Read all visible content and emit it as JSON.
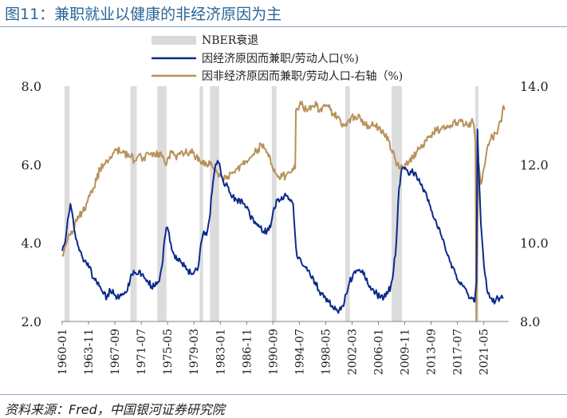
{
  "title": "图11：兼职就业以健康的非经济原因为主",
  "source": "资料来源：Fred，中国银河证券研究院",
  "chart_data": {
    "type": "line",
    "title": "图11：兼职就业以健康的非经济原因为主",
    "legend": [
      {
        "name": "NBER衰退",
        "kind": "band",
        "color": "#d9d9d9"
      },
      {
        "name": "因经济原因而兼职/劳动人口(%)",
        "kind": "line",
        "color": "#0b2b8c"
      },
      {
        "name": "因非经济原因而兼职/劳动人口-右轴（%)",
        "kind": "line",
        "color": "#b8915a"
      }
    ],
    "legend_position": "top-center",
    "x_range": [
      1960.0,
      2024.5
    ],
    "x_ticks": [
      "1960-01",
      "1963-11",
      "1967-09",
      "1971-07",
      "1975-05",
      "1979-03",
      "1983-01",
      "1986-11",
      "1990-09",
      "1994-07",
      "1998-05",
      "2002-03",
      "2006-01",
      "2009-11",
      "2013-09",
      "2017-07",
      "2021-05"
    ],
    "y_left": {
      "ticks": [
        "2.0",
        "4.0",
        "6.0",
        "8.0"
      ],
      "range": [
        2.0,
        8.0
      ]
    },
    "y_right": {
      "ticks": [
        "8.0",
        "10.0",
        "12.0",
        "14.0"
      ],
      "range": [
        8.0,
        14.0
      ]
    },
    "recessions": [
      [
        1960.33,
        1961.08
      ],
      [
        1969.92,
        1970.83
      ],
      [
        1973.83,
        1975.17
      ],
      [
        1980.0,
        1980.5
      ],
      [
        1981.5,
        1982.83
      ],
      [
        1990.5,
        1991.17
      ],
      [
        2001.17,
        2001.83
      ],
      [
        2007.92,
        2009.42
      ],
      [
        2020.08,
        2020.33
      ]
    ],
    "series": [
      {
        "name": "因经济原因而兼职/劳动人口(%)",
        "axis": "left",
        "color": "#0b2b8c",
        "x": [
          1960.0,
          1960.4,
          1960.8,
          1961.2,
          1961.6,
          1962.0,
          1962.5,
          1963.0,
          1963.5,
          1964.0,
          1964.5,
          1965.0,
          1965.5,
          1966.0,
          1966.5,
          1967.0,
          1967.5,
          1968.0,
          1968.5,
          1969.0,
          1969.5,
          1970.0,
          1970.4,
          1970.8,
          1971.2,
          1971.6,
          1972.0,
          1972.5,
          1973.0,
          1973.5,
          1974.0,
          1974.5,
          1975.0,
          1975.3,
          1975.8,
          1976.3,
          1976.8,
          1977.3,
          1977.8,
          1978.3,
          1978.8,
          1979.3,
          1979.8,
          1980.2,
          1980.6,
          1981.0,
          1981.4,
          1981.8,
          1982.2,
          1982.6,
          1983.0,
          1983.4,
          1983.8,
          1984.3,
          1984.8,
          1985.3,
          1985.8,
          1986.3,
          1986.8,
          1987.3,
          1987.8,
          1988.3,
          1988.8,
          1989.3,
          1989.8,
          1990.3,
          1990.8,
          1991.3,
          1991.8,
          1992.3,
          1992.8,
          1993.3,
          1993.6,
          1994.0,
          1994.3,
          1994.8,
          1995.3,
          1995.8,
          1996.3,
          1996.8,
          1997.3,
          1997.8,
          1998.3,
          1998.8,
          1999.3,
          1999.8,
          2000.3,
          2000.8,
          2001.3,
          2001.8,
          2002.3,
          2002.8,
          2003.3,
          2003.8,
          2004.3,
          2004.8,
          2005.3,
          2005.8,
          2006.3,
          2006.8,
          2007.3,
          2007.8,
          2008.2,
          2008.6,
          2009.0,
          2009.4,
          2009.8,
          2010.3,
          2010.8,
          2011.3,
          2011.8,
          2012.3,
          2012.8,
          2013.3,
          2013.8,
          2014.3,
          2014.8,
          2015.3,
          2015.8,
          2016.3,
          2016.8,
          2017.3,
          2017.8,
          2018.3,
          2018.8,
          2019.3,
          2019.8,
          2020.0,
          2020.25,
          2020.4,
          2020.6,
          2020.9,
          2021.2,
          2021.5,
          2021.8,
          2022.2,
          2022.6,
          2023.0,
          2023.4,
          2023.8,
          2024.2
        ],
        "values": [
          3.8,
          4.0,
          4.6,
          5.0,
          4.6,
          4.1,
          3.8,
          3.6,
          3.5,
          3.4,
          3.1,
          3.0,
          2.9,
          2.7,
          2.6,
          2.8,
          2.7,
          2.6,
          2.7,
          2.7,
          2.8,
          3.2,
          3.3,
          3.2,
          3.3,
          3.2,
          3.1,
          3.0,
          2.9,
          2.9,
          3.0,
          3.4,
          4.2,
          4.4,
          4.0,
          3.7,
          3.6,
          3.5,
          3.4,
          3.3,
          3.2,
          3.3,
          3.4,
          4.0,
          4.3,
          4.2,
          4.6,
          5.3,
          5.9,
          6.1,
          5.9,
          5.6,
          5.5,
          5.3,
          5.2,
          5.1,
          5.1,
          5.0,
          4.9,
          4.7,
          4.6,
          4.5,
          4.4,
          4.3,
          4.3,
          4.4,
          4.9,
          5.1,
          5.1,
          5.2,
          5.2,
          5.1,
          5.0,
          3.9,
          3.6,
          3.5,
          3.4,
          3.3,
          3.1,
          3.0,
          2.8,
          2.7,
          2.6,
          2.5,
          2.4,
          2.3,
          2.3,
          2.4,
          2.7,
          3.0,
          3.2,
          3.3,
          3.3,
          3.2,
          3.1,
          2.9,
          2.8,
          2.7,
          2.6,
          2.6,
          2.7,
          2.9,
          3.3,
          4.0,
          5.4,
          5.9,
          5.9,
          5.8,
          5.8,
          5.8,
          5.6,
          5.5,
          5.3,
          5.1,
          4.8,
          4.6,
          4.4,
          4.1,
          3.8,
          3.6,
          3.4,
          3.2,
          3.0,
          2.9,
          2.8,
          2.6,
          2.6,
          2.5,
          3.0,
          6.9,
          5.8,
          4.5,
          3.8,
          3.2,
          2.8,
          2.6,
          2.5,
          2.5,
          2.6,
          2.6,
          2.6
        ]
      },
      {
        "name": "因非经济原因而兼职/劳动人口-右轴（%)",
        "axis": "right",
        "color": "#b8915a",
        "x": [
          1960.0,
          1960.4,
          1960.8,
          1961.2,
          1961.6,
          1962.0,
          1962.5,
          1963.0,
          1963.5,
          1964.0,
          1964.5,
          1965.0,
          1965.5,
          1966.0,
          1966.5,
          1967.0,
          1967.5,
          1968.0,
          1968.5,
          1969.0,
          1969.5,
          1970.0,
          1970.5,
          1971.0,
          1971.5,
          1972.0,
          1972.5,
          1973.0,
          1973.5,
          1974.0,
          1974.5,
          1975.0,
          1975.5,
          1976.0,
          1976.5,
          1977.0,
          1977.5,
          1978.0,
          1978.5,
          1979.0,
          1979.5,
          1980.0,
          1980.5,
          1981.0,
          1981.5,
          1982.0,
          1982.5,
          1983.0,
          1983.5,
          1984.0,
          1984.5,
          1985.0,
          1985.5,
          1986.0,
          1986.5,
          1987.0,
          1987.5,
          1988.0,
          1988.5,
          1989.0,
          1989.5,
          1990.0,
          1990.5,
          1991.0,
          1991.5,
          1992.0,
          1992.5,
          1993.0,
          1993.5,
          1993.9,
          1994.0,
          1994.5,
          1995.0,
          1995.5,
          1996.0,
          1996.5,
          1997.0,
          1997.5,
          1998.0,
          1998.5,
          1999.0,
          1999.5,
          2000.0,
          2000.5,
          2001.0,
          2001.5,
          2002.0,
          2002.5,
          2003.0,
          2003.5,
          2004.0,
          2004.5,
          2005.0,
          2005.5,
          2006.0,
          2006.5,
          2007.0,
          2007.5,
          2008.0,
          2008.5,
          2009.0,
          2009.5,
          2010.0,
          2010.5,
          2011.0,
          2011.5,
          2012.0,
          2012.5,
          2013.0,
          2013.5,
          2014.0,
          2014.5,
          2015.0,
          2015.5,
          2016.0,
          2016.5,
          2017.0,
          2017.5,
          2018.0,
          2018.5,
          2019.0,
          2019.5,
          2019.9,
          2020.1,
          2020.25,
          2020.4,
          2020.6,
          2020.9,
          2021.2,
          2021.5,
          2021.8,
          2022.2,
          2022.6,
          2023.0,
          2023.4,
          2023.8,
          2024.0,
          2024.2,
          2024.4
        ],
        "values": [
          9.7,
          9.9,
          10.1,
          10.2,
          10.3,
          10.6,
          10.7,
          10.8,
          11.0,
          11.2,
          11.4,
          11.6,
          11.9,
          12.0,
          12.1,
          12.2,
          12.3,
          12.4,
          12.3,
          12.3,
          12.2,
          12.2,
          12.1,
          12.2,
          12.2,
          12.1,
          12.3,
          12.3,
          12.2,
          12.3,
          12.2,
          12.0,
          12.2,
          12.3,
          12.2,
          12.3,
          12.3,
          12.4,
          12.3,
          12.3,
          12.2,
          12.1,
          12.0,
          12.0,
          12.0,
          11.9,
          11.8,
          11.7,
          11.6,
          11.7,
          11.8,
          11.8,
          11.9,
          12.0,
          12.0,
          12.1,
          12.2,
          12.3,
          12.4,
          12.5,
          12.4,
          12.2,
          12.0,
          11.8,
          11.7,
          11.7,
          11.7,
          11.8,
          11.9,
          11.9,
          13.4,
          13.5,
          13.5,
          13.4,
          13.5,
          13.5,
          13.5,
          13.4,
          13.5,
          13.5,
          13.4,
          13.3,
          13.2,
          13.1,
          13.0,
          13.1,
          13.2,
          13.2,
          13.2,
          13.1,
          13.0,
          13.0,
          13.0,
          13.0,
          12.9,
          12.8,
          12.7,
          12.6,
          12.3,
          12.1,
          11.9,
          11.9,
          12.0,
          12.1,
          12.2,
          12.3,
          12.4,
          12.5,
          12.6,
          12.7,
          12.8,
          12.9,
          12.9,
          13.0,
          13.0,
          13.0,
          13.1,
          13.0,
          13.1,
          13.0,
          13.0,
          13.1,
          13.0,
          12.6,
          8.0,
          10.2,
          12.0,
          11.5,
          11.8,
          12.0,
          12.4,
          12.6,
          12.7,
          12.8,
          12.9,
          13.1,
          13.3,
          13.5,
          13.4
        ]
      }
    ]
  }
}
